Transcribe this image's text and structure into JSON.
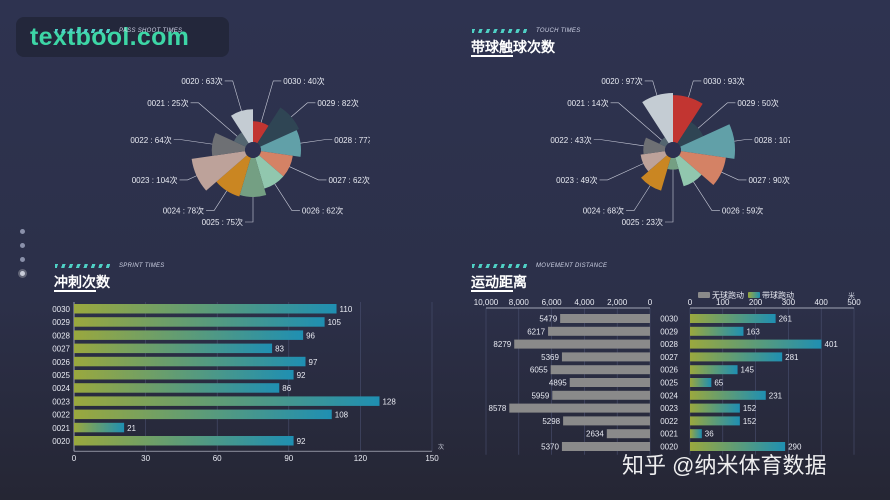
{
  "watermark": "textbool.com",
  "footer_watermark": "知乎 @纳米体育数据",
  "panels": {
    "pass": {
      "tag": "PASS SHOOT TIMES"
    },
    "touch": {
      "tag": "TOUCH TIMES",
      "title": "带球触球次数"
    },
    "sprint": {
      "tag": "SPRINT TIMES",
      "title": "冲刺次数"
    },
    "move": {
      "tag": "MOVEMENT DISTANCE",
      "title": "运动距离"
    }
  },
  "chart_data": [
    {
      "type": "pie",
      "subtype": "rose",
      "unit": "次",
      "categories": [
        "0030",
        "0029",
        "0028",
        "0027",
        "0026",
        "0025",
        "0024",
        "0023",
        "0022",
        "0021",
        "0020"
      ],
      "values": [
        40,
        82,
        77,
        62,
        62,
        75,
        78,
        104,
        64,
        25,
        63
      ],
      "colors": [
        "#c23531",
        "#2f4554",
        "#61a0a8",
        "#d48265",
        "#91c7ae",
        "#749f83",
        "#ca8622",
        "#bda29a",
        "#6e7074",
        "#546570",
        "#c4ccd3"
      ]
    },
    {
      "type": "pie",
      "subtype": "rose",
      "title": "带球触球次数",
      "unit": "次",
      "categories": [
        "0030",
        "0029",
        "0028",
        "0027",
        "0026",
        "0025",
        "0024",
        "0023",
        "0022",
        "0021",
        "0020"
      ],
      "values": [
        93,
        50,
        107,
        90,
        59,
        23,
        68,
        49,
        43,
        14,
        97
      ],
      "colors": [
        "#c23531",
        "#2f4554",
        "#61a0a8",
        "#d48265",
        "#91c7ae",
        "#749f83",
        "#ca8622",
        "#bda29a",
        "#6e7074",
        "#546570",
        "#c4ccd3"
      ]
    },
    {
      "type": "bar",
      "orientation": "horizontal",
      "title": "冲刺次数",
      "categories": [
        "0030",
        "0029",
        "0028",
        "0027",
        "0026",
        "0025",
        "0024",
        "0023",
        "0022",
        "0021",
        "0020"
      ],
      "values": [
        110,
        105,
        96,
        83,
        97,
        92,
        86,
        128,
        108,
        21,
        92
      ],
      "xlim": [
        0,
        150
      ],
      "xticks": [
        "0",
        "30",
        "60",
        "90",
        "120",
        "150"
      ],
      "xunit": "次"
    },
    {
      "type": "bar",
      "orientation": "horizontal",
      "title": "运动距离",
      "categories": [
        "0030",
        "0029",
        "0028",
        "0027",
        "0026",
        "0025",
        "0024",
        "0023",
        "0022",
        "0021",
        "0020"
      ],
      "legend": [
        "无球跑动",
        "带球跑动"
      ],
      "series": [
        {
          "name": "无球跑动",
          "values": [
            5479,
            6217,
            8279,
            5369,
            6055,
            4895,
            5959,
            8578,
            5298,
            2634,
            5370
          ],
          "xlim": [
            10000,
            0
          ],
          "xticks": [
            "10,000",
            "8,000",
            "6,000",
            "4,000",
            "2,000",
            "0"
          ],
          "color": "#8a8a8a"
        },
        {
          "name": "带球跑动",
          "values": [
            261,
            163,
            401,
            281,
            145,
            65,
            231,
            152,
            152,
            36,
            290
          ],
          "xlim": [
            0,
            500
          ],
          "xticks": [
            "0",
            "100",
            "200",
            "300",
            "400",
            "500"
          ],
          "xunit": "米"
        }
      ]
    }
  ]
}
